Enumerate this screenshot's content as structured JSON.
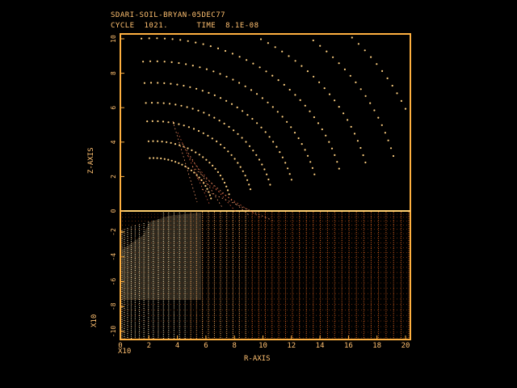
{
  "header": {
    "title": "SDARI-SOIL-BRYAN-05DEC77",
    "cycle_label": "CYCLE",
    "cycle_value": "1021.",
    "time_label": "TIME",
    "time_value": "8.1E-08"
  },
  "axes": {
    "z_label": "Z-AXIS",
    "r_label": "R-AXIS",
    "r_ticks": [
      "0",
      "2",
      "4",
      "6",
      "8",
      "10",
      "12",
      "14",
      "16",
      "18",
      "20"
    ],
    "z_ticks_upper": [
      "10",
      "8",
      "6",
      "4",
      "2",
      "0"
    ],
    "z_ticks_lower": [
      "-2",
      "-4",
      "-6",
      "-8",
      "-10"
    ],
    "r_exponent_label": "X10",
    "z_exponent_label": "X10"
  },
  "colors": {
    "frame": "#ffb040",
    "fluid_dots": "#ffd080",
    "soil_grid_hot": "#fff0c0",
    "soil_grid_cool": "#c05010"
  }
}
